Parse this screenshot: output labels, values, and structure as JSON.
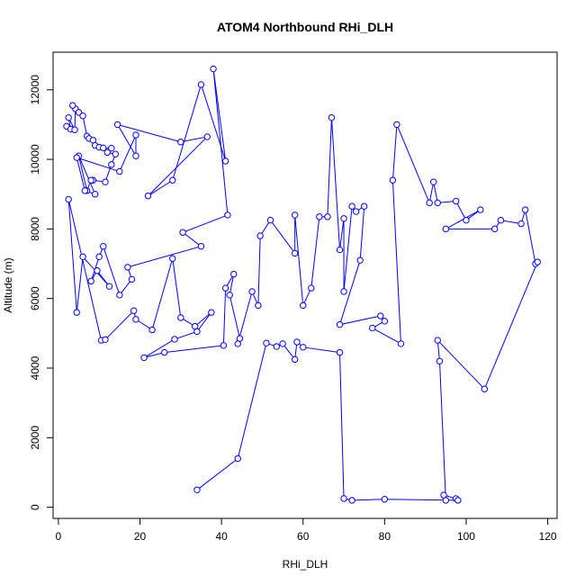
{
  "chart_data": {
    "type": "line",
    "title": "ATOM4 Northbound RHi_DLH",
    "xlabel": "RHi_DLH",
    "ylabel": "Altitude (m)",
    "xlim": [
      -1.3,
      122.3
    ],
    "ylim": [
      -320,
      13080
    ],
    "xticks": [
      0,
      20,
      40,
      60,
      80,
      100,
      120
    ],
    "yticks": [
      0,
      2000,
      4000,
      6000,
      8000,
      10000,
      12000
    ],
    "grid": false,
    "legend": "none",
    "markers": "open-circle",
    "color": "#0000ff",
    "series": [
      {
        "points": [
          [
            2,
            10950
          ],
          [
            3,
            10870
          ],
          [
            2.5,
            11200
          ],
          [
            4,
            10850
          ],
          [
            4.2,
            11450
          ],
          [
            5,
            11350
          ],
          [
            3.5,
            11550
          ],
          [
            6,
            11250
          ],
          [
            7,
            10670
          ],
          [
            7.5,
            10600
          ],
          [
            8.5,
            10550
          ],
          [
            9,
            10400
          ],
          [
            10,
            10350
          ],
          [
            11,
            10330
          ],
          [
            13,
            10320
          ],
          [
            12,
            10200
          ],
          [
            14,
            10150
          ],
          [
            13,
            9850
          ],
          [
            11.5,
            9350
          ],
          [
            8.5,
            9400
          ],
          [
            8,
            9400
          ],
          [
            7,
            9100
          ],
          [
            5,
            10100
          ],
          [
            9,
            9000
          ],
          [
            6.5,
            9100
          ],
          [
            4.5,
            10050
          ],
          [
            15,
            9650
          ],
          [
            19,
            10700
          ],
          [
            19,
            10100
          ],
          [
            14.5,
            11000
          ],
          [
            30,
            10500
          ],
          [
            36.5,
            10650
          ],
          [
            22,
            8950
          ],
          [
            28,
            9400
          ],
          [
            35,
            12150
          ],
          [
            41,
            9950
          ],
          [
            38,
            12600
          ],
          [
            41.5,
            8400
          ],
          [
            30.5,
            7900
          ],
          [
            35,
            7500
          ],
          [
            17,
            6900
          ],
          [
            18,
            6550
          ],
          [
            15,
            6100
          ],
          [
            11,
            7500
          ],
          [
            10,
            7200
          ],
          [
            8,
            6500
          ],
          [
            9.5,
            6800
          ],
          [
            12.5,
            6350
          ],
          [
            6,
            7200
          ],
          [
            4.5,
            5600
          ],
          [
            2.5,
            8850
          ],
          [
            10.5,
            4800
          ],
          [
            11.5,
            4820
          ],
          [
            18.5,
            5650
          ],
          [
            19,
            5400
          ],
          [
            23,
            5100
          ],
          [
            28,
            7150
          ],
          [
            30,
            5450
          ],
          [
            33.5,
            5200
          ],
          [
            37.5,
            5600
          ],
          [
            34,
            5050
          ],
          [
            28.5,
            4830
          ],
          [
            21,
            4300
          ],
          [
            26,
            4450
          ],
          [
            40.5,
            4650
          ],
          [
            41,
            6300
          ],
          [
            43,
            6700
          ],
          [
            42,
            6100
          ],
          [
            44.5,
            4850
          ],
          [
            44,
            4700
          ],
          [
            47.5,
            6200
          ],
          [
            49,
            5800
          ],
          [
            49.5,
            7800
          ],
          [
            52,
            8250
          ],
          [
            58,
            7300
          ],
          [
            58,
            8400
          ],
          [
            60,
            5800
          ],
          [
            62,
            6300
          ],
          [
            64,
            8350
          ],
          [
            66,
            8350
          ],
          [
            67,
            11200
          ],
          [
            69,
            7400
          ],
          [
            70,
            8300
          ],
          [
            70,
            6200
          ],
          [
            72,
            8650
          ],
          [
            73,
            8500
          ],
          [
            75,
            8650
          ],
          [
            74,
            7100
          ],
          [
            69,
            5250
          ],
          [
            79,
            5500
          ],
          [
            80,
            5350
          ],
          [
            77,
            5150
          ],
          [
            84,
            4700
          ],
          [
            82,
            9400
          ],
          [
            83,
            11000
          ],
          [
            91,
            8750
          ],
          [
            92,
            9350
          ],
          [
            93,
            8750
          ],
          [
            97.5,
            8800
          ],
          [
            100,
            8250
          ],
          [
            103.5,
            8550
          ],
          [
            95,
            8000
          ],
          [
            107,
            8000
          ],
          [
            108.5,
            8250
          ],
          [
            113.5,
            8150
          ],
          [
            114.5,
            8550
          ],
          [
            117,
            7000
          ],
          [
            117.5,
            7050
          ],
          [
            104.5,
            3400
          ],
          [
            93,
            4800
          ],
          [
            93.5,
            4200
          ],
          [
            95,
            200
          ],
          [
            94.5,
            350
          ],
          [
            97.5,
            250
          ],
          [
            98,
            200
          ],
          [
            80,
            230
          ],
          [
            72,
            200
          ],
          [
            70,
            250
          ],
          [
            69,
            4450
          ],
          [
            60,
            4600
          ],
          [
            58.5,
            4750
          ],
          [
            58,
            4250
          ],
          [
            55,
            4700
          ],
          [
            53.5,
            4620
          ],
          [
            51,
            4720
          ],
          [
            44,
            1400
          ],
          [
            34,
            500
          ]
        ]
      }
    ]
  }
}
